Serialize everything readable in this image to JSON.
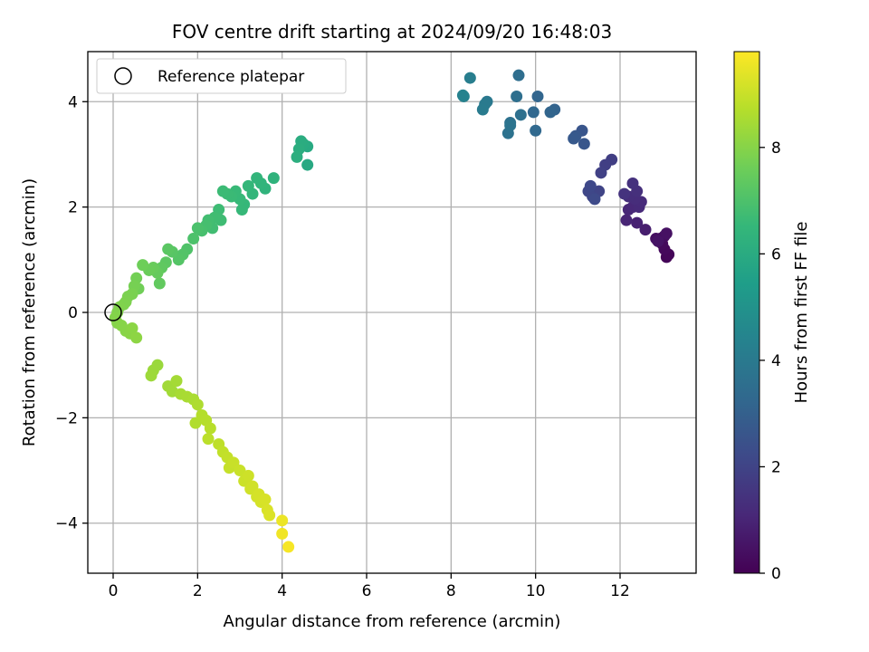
{
  "chart_data": {
    "type": "scatter",
    "title": "FOV centre drift starting at 2024/09/20 16:48:03",
    "xlabel": "Angular distance from reference (arcmin)",
    "ylabel": "Rotation from reference (arcmin)",
    "xlim": [
      -0.6,
      13.8
    ],
    "ylim": [
      -4.95,
      4.95
    ],
    "xticks": [
      0,
      2,
      4,
      6,
      8,
      10,
      12
    ],
    "xtick_labels": [
      "0",
      "2",
      "4",
      "6",
      "8",
      "10",
      "12"
    ],
    "yticks": [
      -4,
      -2,
      0,
      2,
      4
    ],
    "ytick_labels": [
      "−4",
      "−2",
      "0",
      "2",
      "4"
    ],
    "grid": true,
    "legend": {
      "position": "top-left",
      "entries": [
        "Reference platepar"
      ]
    },
    "reference_point": {
      "x": 0,
      "y": 0,
      "marker": "open-circle"
    },
    "colorbar": {
      "label": "Hours from first FF file",
      "min": 0,
      "max": 9.8,
      "ticks": [
        0,
        2,
        4,
        6,
        8
      ],
      "tick_labels": [
        "0",
        "2",
        "4",
        "6",
        "8"
      ],
      "colormap": "viridis",
      "colors": [
        "#440154",
        "#482878",
        "#3e4989",
        "#31688e",
        "#26828e",
        "#1f9e89",
        "#35b779",
        "#6ece58",
        "#b5de2b",
        "#fde725"
      ]
    },
    "points": [
      {
        "x": 13.1,
        "y": 1.05,
        "t": 0.1
      },
      {
        "x": 13.15,
        "y": 1.1,
        "t": 0.15
      },
      {
        "x": 13.05,
        "y": 1.2,
        "t": 0.2
      },
      {
        "x": 13.0,
        "y": 1.3,
        "t": 0.25
      },
      {
        "x": 12.95,
        "y": 1.4,
        "t": 0.3
      },
      {
        "x": 13.05,
        "y": 1.45,
        "t": 0.35
      },
      {
        "x": 12.85,
        "y": 1.4,
        "t": 0.4
      },
      {
        "x": 13.1,
        "y": 1.5,
        "t": 0.45
      },
      {
        "x": 12.9,
        "y": 1.35,
        "t": 0.5
      },
      {
        "x": 12.6,
        "y": 1.57,
        "t": 0.8
      },
      {
        "x": 12.4,
        "y": 1.7,
        "t": 0.9
      },
      {
        "x": 12.15,
        "y": 1.75,
        "t": 1.0
      },
      {
        "x": 12.2,
        "y": 1.95,
        "t": 1.05
      },
      {
        "x": 12.3,
        "y": 2.0,
        "t": 1.1
      },
      {
        "x": 12.45,
        "y": 2.0,
        "t": 1.15
      },
      {
        "x": 12.5,
        "y": 2.1,
        "t": 1.2
      },
      {
        "x": 12.35,
        "y": 2.15,
        "t": 1.25
      },
      {
        "x": 12.2,
        "y": 2.2,
        "t": 1.3
      },
      {
        "x": 12.4,
        "y": 2.3,
        "t": 1.35
      },
      {
        "x": 12.3,
        "y": 2.45,
        "t": 1.4
      },
      {
        "x": 12.1,
        "y": 2.25,
        "t": 1.45
      },
      {
        "x": 11.8,
        "y": 2.9,
        "t": 1.8
      },
      {
        "x": 11.65,
        "y": 2.8,
        "t": 1.85
      },
      {
        "x": 11.55,
        "y": 2.65,
        "t": 1.9
      },
      {
        "x": 11.5,
        "y": 2.3,
        "t": 2.0
      },
      {
        "x": 11.35,
        "y": 2.2,
        "t": 2.05
      },
      {
        "x": 11.25,
        "y": 2.3,
        "t": 2.1
      },
      {
        "x": 11.3,
        "y": 2.4,
        "t": 2.15
      },
      {
        "x": 11.4,
        "y": 2.15,
        "t": 2.2
      },
      {
        "x": 11.1,
        "y": 3.45,
        "t": 2.6
      },
      {
        "x": 11.15,
        "y": 3.2,
        "t": 2.65
      },
      {
        "x": 10.95,
        "y": 3.35,
        "t": 2.7
      },
      {
        "x": 10.9,
        "y": 3.3,
        "t": 2.75
      },
      {
        "x": 10.45,
        "y": 3.85,
        "t": 3.1
      },
      {
        "x": 10.35,
        "y": 3.8,
        "t": 3.15
      },
      {
        "x": 10.05,
        "y": 4.1,
        "t": 3.2
      },
      {
        "x": 9.95,
        "y": 3.8,
        "t": 3.25
      },
      {
        "x": 10.0,
        "y": 3.45,
        "t": 3.3
      },
      {
        "x": 9.6,
        "y": 4.5,
        "t": 3.5
      },
      {
        "x": 9.55,
        "y": 4.1,
        "t": 3.55
      },
      {
        "x": 9.65,
        "y": 3.75,
        "t": 3.6
      },
      {
        "x": 9.4,
        "y": 3.6,
        "t": 3.65
      },
      {
        "x": 9.35,
        "y": 3.4,
        "t": 3.7
      },
      {
        "x": 9.4,
        "y": 3.55,
        "t": 3.75
      },
      {
        "x": 8.85,
        "y": 4.0,
        "t": 3.95
      },
      {
        "x": 8.8,
        "y": 3.95,
        "t": 4.0
      },
      {
        "x": 8.75,
        "y": 3.85,
        "t": 4.05
      },
      {
        "x": 8.45,
        "y": 4.45,
        "t": 4.2
      },
      {
        "x": 8.3,
        "y": 4.1,
        "t": 4.3
      },
      {
        "x": 8.28,
        "y": 4.12,
        "t": 4.35
      },
      {
        "x": 4.6,
        "y": 2.8,
        "t": 5.9
      },
      {
        "x": 4.6,
        "y": 3.15,
        "t": 5.95
      },
      {
        "x": 4.5,
        "y": 3.2,
        "t": 6.0
      },
      {
        "x": 4.45,
        "y": 3.25,
        "t": 6.05
      },
      {
        "x": 4.4,
        "y": 3.1,
        "t": 6.1
      },
      {
        "x": 4.35,
        "y": 2.95,
        "t": 6.12
      },
      {
        "x": 3.8,
        "y": 2.55,
        "t": 6.3
      },
      {
        "x": 3.6,
        "y": 2.35,
        "t": 6.35
      },
      {
        "x": 3.5,
        "y": 2.45,
        "t": 6.4
      },
      {
        "x": 3.4,
        "y": 2.55,
        "t": 6.42
      },
      {
        "x": 3.3,
        "y": 2.25,
        "t": 6.45
      },
      {
        "x": 3.2,
        "y": 2.4,
        "t": 6.5
      },
      {
        "x": 3.1,
        "y": 2.05,
        "t": 6.52
      },
      {
        "x": 3.05,
        "y": 1.95,
        "t": 6.55
      },
      {
        "x": 3.0,
        "y": 2.15,
        "t": 6.58
      },
      {
        "x": 2.9,
        "y": 2.3,
        "t": 6.6
      },
      {
        "x": 2.8,
        "y": 2.2,
        "t": 6.62
      },
      {
        "x": 2.7,
        "y": 2.25,
        "t": 6.65
      },
      {
        "x": 2.6,
        "y": 2.3,
        "t": 6.67
      },
      {
        "x": 2.5,
        "y": 1.95,
        "t": 6.7
      },
      {
        "x": 2.55,
        "y": 1.75,
        "t": 6.72
      },
      {
        "x": 2.4,
        "y": 1.8,
        "t": 6.75
      },
      {
        "x": 2.35,
        "y": 1.6,
        "t": 6.78
      },
      {
        "x": 2.25,
        "y": 1.75,
        "t": 6.8
      },
      {
        "x": 2.2,
        "y": 1.65,
        "t": 6.85
      },
      {
        "x": 2.1,
        "y": 1.55,
        "t": 6.9
      },
      {
        "x": 2.0,
        "y": 1.6,
        "t": 6.95
      },
      {
        "x": 1.9,
        "y": 1.4,
        "t": 7.0
      },
      {
        "x": 1.75,
        "y": 1.2,
        "t": 7.05
      },
      {
        "x": 1.65,
        "y": 1.1,
        "t": 7.1
      },
      {
        "x": 1.55,
        "y": 1.0,
        "t": 7.15
      },
      {
        "x": 1.4,
        "y": 1.15,
        "t": 7.2
      },
      {
        "x": 1.3,
        "y": 1.2,
        "t": 7.25
      },
      {
        "x": 1.25,
        "y": 0.95,
        "t": 7.3
      },
      {
        "x": 1.15,
        "y": 0.85,
        "t": 7.35
      },
      {
        "x": 1.1,
        "y": 0.55,
        "t": 7.4
      },
      {
        "x": 1.05,
        "y": 0.75,
        "t": 7.45
      },
      {
        "x": 0.95,
        "y": 0.85,
        "t": 7.5
      },
      {
        "x": 0.85,
        "y": 0.8,
        "t": 7.55
      },
      {
        "x": 0.7,
        "y": 0.9,
        "t": 7.6
      },
      {
        "x": 0.6,
        "y": 0.45,
        "t": 7.65
      },
      {
        "x": 0.55,
        "y": 0.65,
        "t": 7.7
      },
      {
        "x": 0.5,
        "y": 0.5,
        "t": 7.75
      },
      {
        "x": 0.45,
        "y": 0.35,
        "t": 7.8
      },
      {
        "x": 0.35,
        "y": 0.3,
        "t": 7.82
      },
      {
        "x": 0.3,
        "y": 0.2,
        "t": 7.85
      },
      {
        "x": 0.25,
        "y": 0.15,
        "t": 7.87
      },
      {
        "x": 0.15,
        "y": 0.1,
        "t": 7.9
      },
      {
        "x": 0.1,
        "y": 0.0,
        "t": 7.92
      },
      {
        "x": 0.05,
        "y": -0.1,
        "t": 7.95
      },
      {
        "x": 0.1,
        "y": -0.2,
        "t": 7.97
      },
      {
        "x": 0.2,
        "y": -0.25,
        "t": 8.0
      },
      {
        "x": 0.3,
        "y": -0.35,
        "t": 8.02
      },
      {
        "x": 0.4,
        "y": -0.4,
        "t": 8.05
      },
      {
        "x": 0.45,
        "y": -0.3,
        "t": 8.07
      },
      {
        "x": 0.55,
        "y": -0.48,
        "t": 8.1
      },
      {
        "x": 1.05,
        "y": -1.0,
        "t": 8.3
      },
      {
        "x": 0.95,
        "y": -1.1,
        "t": 8.32
      },
      {
        "x": 0.9,
        "y": -1.2,
        "t": 8.35
      },
      {
        "x": 1.3,
        "y": -1.4,
        "t": 8.4
      },
      {
        "x": 1.4,
        "y": -1.5,
        "t": 8.42
      },
      {
        "x": 1.5,
        "y": -1.3,
        "t": 8.45
      },
      {
        "x": 1.6,
        "y": -1.55,
        "t": 8.5
      },
      {
        "x": 1.75,
        "y": -1.6,
        "t": 8.52
      },
      {
        "x": 1.9,
        "y": -1.65,
        "t": 8.55
      },
      {
        "x": 2.0,
        "y": -1.75,
        "t": 8.6
      },
      {
        "x": 1.95,
        "y": -2.1,
        "t": 8.65
      },
      {
        "x": 2.1,
        "y": -1.95,
        "t": 8.7
      },
      {
        "x": 2.2,
        "y": -2.05,
        "t": 8.72
      },
      {
        "x": 2.3,
        "y": -2.2,
        "t": 8.75
      },
      {
        "x": 2.25,
        "y": -2.4,
        "t": 8.8
      },
      {
        "x": 2.5,
        "y": -2.5,
        "t": 8.85
      },
      {
        "x": 2.6,
        "y": -2.65,
        "t": 8.9
      },
      {
        "x": 2.7,
        "y": -2.75,
        "t": 8.92
      },
      {
        "x": 2.75,
        "y": -2.95,
        "t": 8.95
      },
      {
        "x": 2.85,
        "y": -2.85,
        "t": 9.0
      },
      {
        "x": 3.0,
        "y": -3.0,
        "t": 9.02
      },
      {
        "x": 3.1,
        "y": -3.2,
        "t": 9.05
      },
      {
        "x": 3.2,
        "y": -3.1,
        "t": 9.08
      },
      {
        "x": 3.25,
        "y": -3.35,
        "t": 9.1
      },
      {
        "x": 3.3,
        "y": -3.3,
        "t": 9.12
      },
      {
        "x": 3.4,
        "y": -3.5,
        "t": 9.15
      },
      {
        "x": 3.45,
        "y": -3.45,
        "t": 9.18
      },
      {
        "x": 3.5,
        "y": -3.6,
        "t": 9.2
      },
      {
        "x": 3.6,
        "y": -3.55,
        "t": 9.22
      },
      {
        "x": 3.65,
        "y": -3.75,
        "t": 9.25
      },
      {
        "x": 3.7,
        "y": -3.85,
        "t": 9.28
      },
      {
        "x": 4.0,
        "y": -3.95,
        "t": 9.55
      },
      {
        "x": 4.0,
        "y": -4.2,
        "t": 9.6
      },
      {
        "x": 4.15,
        "y": -4.45,
        "t": 9.7
      }
    ]
  }
}
